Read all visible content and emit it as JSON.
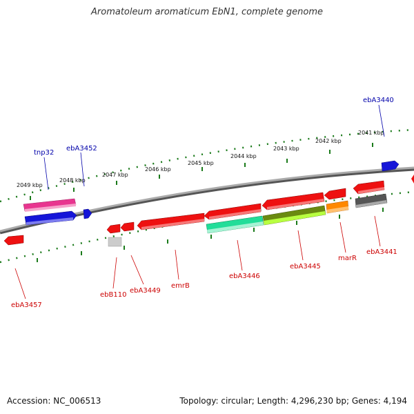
{
  "title": "Aromatoleum aromaticum EbN1, complete genome",
  "footer": {
    "accession": "Accession: NC_006513",
    "summary": "Topology: circular; Length: 4,296,230 bp; Genes: 4,194"
  },
  "colors": {
    "backbone": "#888888",
    "ticks": "#1a7a1a",
    "label_forward": "#0000aa",
    "label_reverse": "#cc0000"
  },
  "ticks": [
    {
      "label": "2041 kbp"
    },
    {
      "label": "2042 kbp"
    },
    {
      "label": "2043 kbp"
    },
    {
      "label": "2044 kbp"
    },
    {
      "label": "2045 kbp"
    },
    {
      "label": "2046 kbp"
    },
    {
      "label": "2047 kbp"
    },
    {
      "label": "2048 kbp"
    },
    {
      "label": "2049 kbp"
    }
  ],
  "gene_labels": [
    {
      "name": "ebA3440",
      "strand": "forward"
    },
    {
      "name": "ebA3452",
      "strand": "forward"
    },
    {
      "name": "tnp32",
      "strand": "forward"
    },
    {
      "name": "ebA3457",
      "strand": "reverse"
    },
    {
      "name": "ebB110",
      "strand": "reverse"
    },
    {
      "name": "ebA3449",
      "strand": "reverse"
    },
    {
      "name": "emrB",
      "strand": "reverse"
    },
    {
      "name": "ebA3446",
      "strand": "reverse"
    },
    {
      "name": "ebA3445",
      "strand": "reverse"
    },
    {
      "name": "marR",
      "strand": "reverse"
    },
    {
      "name": "ebA3441",
      "strand": "reverse"
    }
  ]
}
